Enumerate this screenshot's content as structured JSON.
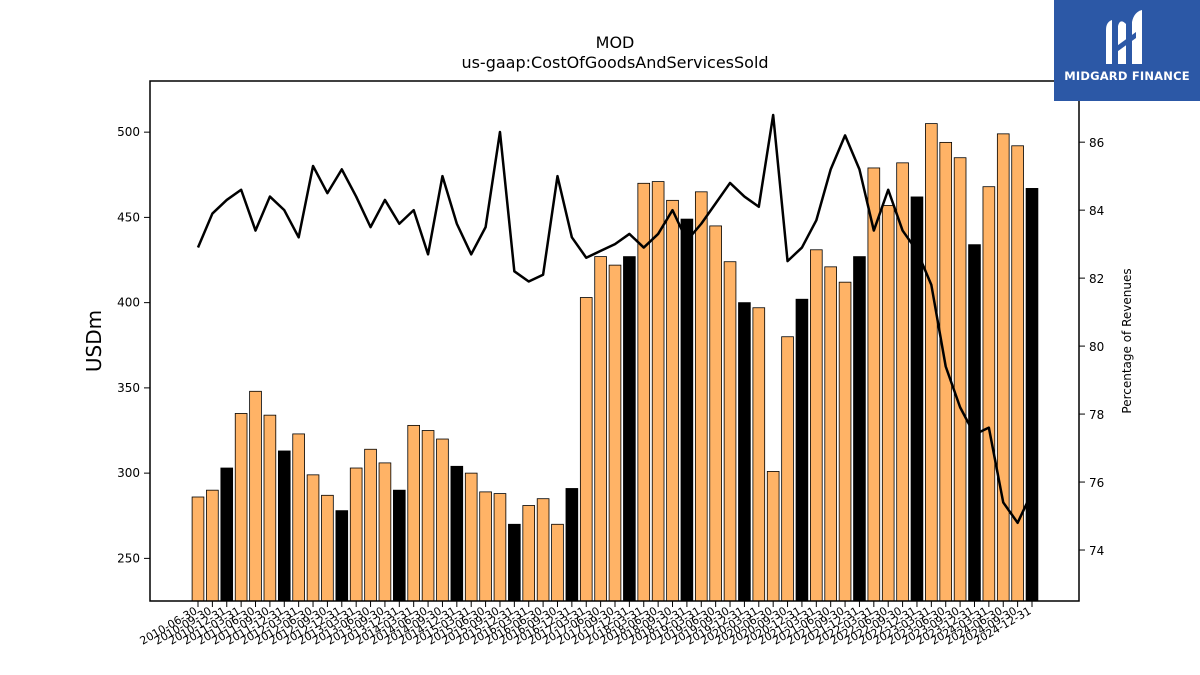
{
  "brand": {
    "name": "MIDGARD FINANCE",
    "logo_icon": "midgard-m-icon"
  },
  "colors": {
    "quarter_bar": "#ffb366",
    "annual_bar": "#000000",
    "line": "#000000",
    "logo_bg": "#2c58a6"
  },
  "chart_data": {
    "type": "bar",
    "title": "MOD",
    "subtitle": "us-gaap:CostOfGoodsAndServicesSold",
    "ylabel": "USDm",
    "ylabel_right": "Percentage of Revenues",
    "ylim": [
      225,
      530
    ],
    "ylim_right": [
      72.5,
      87.8
    ],
    "yticks": [
      250,
      300,
      350,
      400,
      450,
      500
    ],
    "yticks_right": [
      74,
      76,
      78,
      80,
      82,
      84,
      86
    ],
    "categories": [
      "2010-06-30",
      "2010-09-30",
      "2010-12-31",
      "2011-03-31",
      "2011-06-30",
      "2011-09-30",
      "2011-12-31",
      "2012-03-31",
      "2012-06-30",
      "2012-09-30",
      "2012-12-31",
      "2013-03-31",
      "2013-06-30",
      "2013-09-30",
      "2013-12-31",
      "2014-03-31",
      "2014-06-30",
      "2014-09-30",
      "2014-12-31",
      "2015-03-31",
      "2015-06-30",
      "2015-09-30",
      "2015-12-31",
      "2016-03-31",
      "2016-06-30",
      "2016-09-30",
      "2016-12-31",
      "2017-03-31",
      "2017-06-30",
      "2017-09-30",
      "2017-12-31",
      "2018-03-31",
      "2018-06-30",
      "2018-09-30",
      "2018-12-31",
      "2019-03-31",
      "2019-06-30",
      "2019-09-30",
      "2019-12-31",
      "2020-03-31",
      "2020-06-30",
      "2020-09-30",
      "2020-12-31",
      "2021-03-31",
      "2021-06-30",
      "2021-09-30",
      "2021-12-31",
      "2022-03-31",
      "2022-06-30",
      "2022-09-30",
      "2022-12-31",
      "2023-03-31",
      "2023-06-30",
      "2023-09-30",
      "2023-12-31",
      "2024-03-31",
      "2024-06-30",
      "2024-09-30",
      "2024-12-31"
    ],
    "series": [
      {
        "kind": "bar",
        "values": [
          286,
          290,
          303,
          335,
          348,
          334,
          313,
          323,
          299,
          287,
          278,
          303,
          314,
          306,
          290,
          328,
          325,
          320,
          304,
          300,
          289,
          288,
          270,
          281,
          285,
          270,
          291,
          403,
          427,
          422,
          427,
          470,
          471,
          460,
          449,
          465,
          445,
          424,
          400,
          397,
          301,
          380,
          402,
          431,
          421,
          412,
          427,
          479,
          457,
          482,
          462,
          505,
          494,
          485,
          434,
          468,
          499,
          492,
          467
        ],
        "annual": [
          false,
          false,
          true,
          false,
          false,
          false,
          true,
          false,
          false,
          false,
          true,
          false,
          false,
          false,
          true,
          false,
          false,
          false,
          true,
          false,
          false,
          false,
          true,
          false,
          false,
          false,
          true,
          false,
          false,
          false,
          true,
          false,
          false,
          false,
          true,
          false,
          false,
          false,
          true,
          false,
          false,
          false,
          true,
          false,
          false,
          false,
          true,
          false,
          false,
          false,
          true,
          false,
          false,
          false,
          true,
          false,
          false,
          false,
          true
        ]
      },
      {
        "kind": "line",
        "axis": "right",
        "values": [
          82.9,
          83.9,
          84.3,
          84.6,
          83.4,
          84.4,
          84.0,
          83.2,
          85.3,
          84.5,
          85.2,
          84.4,
          83.5,
          84.3,
          83.6,
          84.0,
          82.7,
          85.0,
          83.6,
          82.7,
          83.5,
          86.3,
          82.2,
          81.9,
          82.1,
          85.0,
          83.2,
          82.6,
          82.8,
          83.0,
          83.3,
          82.9,
          83.3,
          84.0,
          83.1,
          83.6,
          84.2,
          84.8,
          84.4,
          84.1,
          86.8,
          82.5,
          82.9,
          83.7,
          85.2,
          86.2,
          85.2,
          83.4,
          84.6,
          83.4,
          82.8,
          81.8,
          79.4,
          78.2,
          77.4,
          77.6,
          75.4,
          74.8,
          75.7
        ]
      }
    ]
  }
}
